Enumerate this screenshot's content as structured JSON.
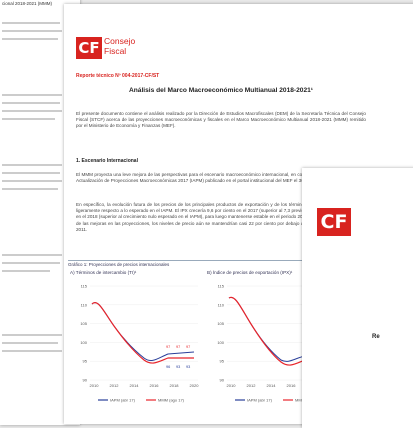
{
  "left_page": {
    "text": "cional 2018-2021 (MMM)"
  },
  "header": {
    "logo_mark": "CF",
    "logo_line1": "Consejo",
    "logo_line2": "Fiscal",
    "report": "Reporte técnico Nº 004-2017-CF/ST",
    "title": "Análisis del Marco Macroeconómico Multianual 2018-2021¹"
  },
  "intro": "El presente documento contiene el análisis realizado por la Dirección de Estudios Macrofiscales (DEM) de la Secretaría Técnica del Consejo Fiscal (STCF) acerca de las proyecciones macroeconómicas y fiscales en el Marco Macroeconómico Multianual 2018-2021 (MMM) remitido por el Ministerio de Economía y Finanzas (MEF).",
  "section": "1. Escenario Internacional",
  "paragraphs": [
    "El MMM proyecta una leve mejora de las perspectivas para el escenario macroeconómico internacional, en comparación a las del Informe de Actualización de Proyecciones Macroeconómicas 2017 (IAPM) publicado en el portal institucional del MEF el 30 de abril de 2017.",
    "En específico, la evolución futura de los precios de los principales productos de exportación y de los términos de intercambio (TI) mejoran ligeramente respecto a lo esperado en el IAPM. El IPX crecería 9,6 por ciento en el 2017 (superior al 7,3 previsto en el IAPM) y 1,1 por ciento en el 2018 (superior al crecimiento nulo esperado en el IAPM), para luego mantenerse estable en el periodo 2019-2021. Sin embargo, a pesar de las mejoras en las proyecciones, los niveles de precio aún se mantendrían casi 22 por ciento por debajo de los precios registrados en el 2011."
  ],
  "figure": {
    "title": "Gráfico 1: Proyecciones de precios internacionales",
    "panels": [
      {
        "title": "A) Términos de intercambio (TI)¹",
        "yticks": [
          "115",
          "110",
          "105",
          "100",
          "95",
          "90"
        ],
        "xticks": [
          "2010",
          "2012",
          "2014",
          "2016",
          "2018",
          "2020"
        ],
        "labels_top": [
          "97",
          "97",
          "97"
        ],
        "labels_bottom": [
          "96",
          "93",
          "93"
        ],
        "legend": [
          "IAPM (abr 17)",
          "MMM (ago 17)"
        ]
      },
      {
        "title": "B) Índice de precios de exportación (IPX)¹",
        "yticks": [
          "115",
          "110",
          "105",
          "100",
          "95",
          "90"
        ],
        "xticks": [
          "2010",
          "2012",
          "2014",
          "2016",
          "2018",
          "2020"
        ],
        "labels_top": [
          "97",
          "97",
          "97"
        ],
        "labels_bottom": [
          "96",
          "93",
          "93"
        ],
        "legend": [
          "IAPM (abr 17)",
          "MMM (ago 17)"
        ]
      }
    ]
  },
  "right_page": {
    "logo_mark": "CF",
    "text": "Re"
  }
}
